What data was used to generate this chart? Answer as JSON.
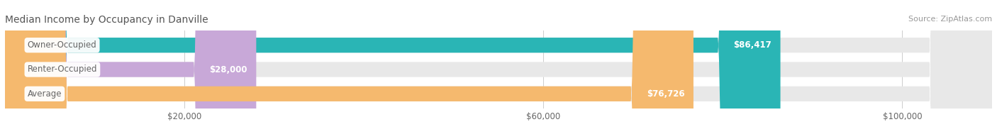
{
  "title": "Median Income by Occupancy in Danville",
  "source": "Source: ZipAtlas.com",
  "categories": [
    "Owner-Occupied",
    "Renter-Occupied",
    "Average"
  ],
  "values": [
    86417,
    28000,
    76726
  ],
  "labels": [
    "$86,417",
    "$28,000",
    "$76,726"
  ],
  "bar_colors": [
    "#2ab5b5",
    "#c8a8d8",
    "#f5b96e"
  ],
  "bar_bg_color": "#e8e8e8",
  "category_label_color": "#666666",
  "title_color": "#555555",
  "source_color": "#999999",
  "xlim": [
    0,
    110000
  ],
  "xticks": [
    20000,
    60000,
    100000
  ],
  "xticklabels": [
    "$20,000",
    "$60,000",
    "$100,000"
  ],
  "bar_height": 0.62,
  "figsize": [
    14.06,
    1.96
  ],
  "dpi": 100
}
